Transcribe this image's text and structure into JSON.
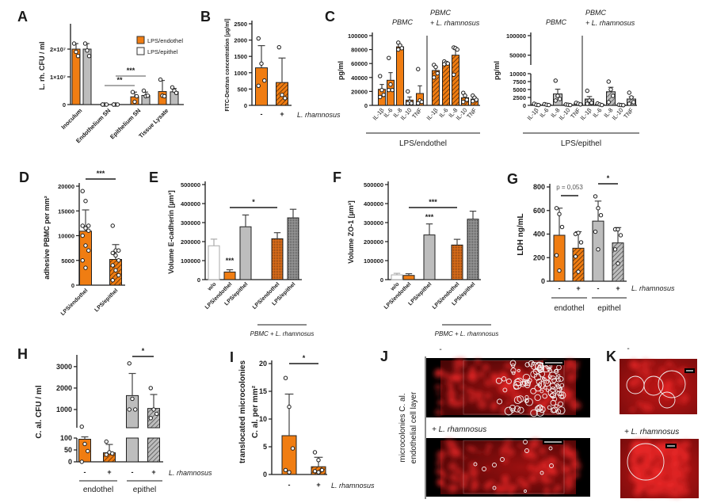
{
  "panel_labels": [
    "A",
    "B",
    "C",
    "D",
    "E",
    "F",
    "G",
    "H",
    "I",
    "J",
    "K"
  ],
  "colors": {
    "orange": "#F07D12",
    "grey": "#BDBDBD",
    "white": "#FFFFFF",
    "axis": "#1A1A1A",
    "fluorescence": "#D01818"
  },
  "chart_data": [
    {
      "panel": "A",
      "type": "bar",
      "ylabel": "L. rh. CFU / ml",
      "ylim": [
        0,
        28000000
      ],
      "y_segments": [
        [
          0,
          28000000
        ]
      ],
      "yticks": [
        0,
        10000000,
        20000000
      ],
      "ytick_labels": [
        "0",
        "1×10⁷",
        "2×10⁷"
      ],
      "categories": [
        "Inoculum",
        "Endothelium SN",
        "Epithelium SN",
        "Tissue Lysate"
      ],
      "legend": [
        {
          "label": "LPS/endothel",
          "fill_style": "orange"
        },
        {
          "label": "LPS/epithel",
          "fill_style": "white"
        }
      ],
      "legend_placement": "top-right",
      "bars": [
        {
          "category": "Inoculum",
          "series": "LPS/endothel",
          "value": 20000000,
          "error": 2000000,
          "points": [
            22000000,
            19000000,
            17500000
          ],
          "fill_style": "orange"
        },
        {
          "category": "Inoculum",
          "series": "LPS/epithel",
          "value": 20000000,
          "error": 2000000,
          "points": [
            22000000,
            19500000,
            17500000
          ],
          "fill_style": "grey"
        },
        {
          "category": "Endothelium SN",
          "series": "LPS/endothel",
          "value": 0,
          "error": 0,
          "points": [
            0,
            0,
            0,
            0
          ],
          "fill_style": "orange"
        },
        {
          "category": "Endothelium SN",
          "series": "LPS/epithel",
          "value": 0,
          "error": 0,
          "points": [
            0,
            0,
            0,
            0
          ],
          "fill_style": "grey"
        },
        {
          "category": "Epithelium SN",
          "series": "LPS/endothel",
          "value": 2800000,
          "error": 1700000,
          "points": [
            4500000,
            1000000,
            3000000
          ],
          "fill_style": "orange"
        },
        {
          "category": "Epithelium SN",
          "series": "LPS/epithel",
          "value": 3300000,
          "error": 1200000,
          "points": [
            5000000,
            3000000,
            3200000
          ],
          "fill_style": "grey"
        },
        {
          "category": "Tissue Lysate",
          "series": "LPS/endothel",
          "value": 4700000,
          "error": 4000000,
          "points": [
            9000000,
            3200000,
            3000000
          ],
          "fill_style": "orange"
        },
        {
          "category": "Tissue Lysate",
          "series": "LPS/epithel",
          "value": 4600000,
          "error": 1200000,
          "points": [
            6200000,
            5000000,
            4200000
          ],
          "fill_style": "grey"
        }
      ],
      "significance": [
        {
          "label": "**",
          "from": 2,
          "to": 4
        },
        {
          "label": "***",
          "from": 3,
          "to": 5
        }
      ]
    },
    {
      "panel": "B",
      "type": "bar",
      "ylabel": "FITC-Dextran concentration [µg/ml]",
      "ylim": [
        0,
        2500
      ],
      "y_segments": [
        [
          0,
          2500
        ]
      ],
      "yticks": [
        0,
        500,
        1000,
        1500,
        2000,
        2500
      ],
      "ytick_labels": [
        "0",
        "500",
        "1000",
        "1500",
        "2000",
        "2500"
      ],
      "xticks": [
        "-",
        "+"
      ],
      "xlabel": "L. rhamnosus",
      "bars": [
        {
          "value": 1150,
          "error": 680,
          "points": [
            2050,
            1280,
            760,
            600
          ],
          "fill_style": "orange"
        },
        {
          "value": 700,
          "error": 750,
          "points": [
            1780,
            320,
            220
          ],
          "fill_style": "orange-hatched"
        }
      ]
    },
    {
      "panel": "C",
      "type": "bar",
      "ylabel": "pg/ml",
      "ylim": [
        0,
        100000
      ],
      "y_segments": [
        [
          0,
          100000
        ]
      ],
      "yticks": [
        0,
        20000,
        40000,
        60000,
        80000,
        100000
      ],
      "ytick_labels": [
        "0",
        "20000",
        "40000",
        "60000",
        "80000",
        "100000"
      ],
      "headers": [
        {
          "lines": [
            "PBMC"
          ]
        },
        {
          "lines": [
            "PBMC",
            "+ L. rhamnosus"
          ]
        }
      ],
      "xticks": [
        "IL-1β",
        "IL-6",
        "IL-8",
        "IL-10",
        "TNF",
        "IL-1β",
        "IL-6",
        "IL-8",
        "IL-10",
        "TNF"
      ],
      "groups": [
        {
          "label": "LPS/endothel"
        }
      ],
      "bars": [
        {
          "value": 23000,
          "error": 7000,
          "points": [
            42000,
            22000,
            15000,
            12000
          ],
          "fill_style": "orange"
        },
        {
          "value": 36000,
          "error": 11000,
          "points": [
            68000,
            30000,
            22000,
            22000
          ],
          "fill_style": "orange"
        },
        {
          "value": 84000,
          "error": 3000,
          "points": [
            90000,
            86000,
            82000,
            80000
          ],
          "fill_style": "orange"
        },
        {
          "value": 7500,
          "error": 4500,
          "points": [
            20000,
            5000,
            3000,
            3000
          ],
          "fill_style": "orange"
        },
        {
          "value": 17000,
          "error": 11000,
          "points": [
            52000,
            7000,
            5000,
            3000
          ],
          "fill_style": "orange"
        },
        {
          "value": 50000,
          "error": 5000,
          "points": [
            58000,
            55000,
            46000,
            40000
          ],
          "fill_style": "orange-hatched"
        },
        {
          "value": 61000,
          "error": 2000,
          "points": [
            63000,
            61000,
            60000,
            59000
          ],
          "fill_style": "orange-hatched"
        },
        {
          "value": 72000,
          "error": 8000,
          "points": [
            83000,
            82000,
            80000,
            44000
          ],
          "fill_style": "orange-hatched"
        },
        {
          "value": 11000,
          "error": 3000,
          "points": [
            18000,
            14000,
            8000,
            5000
          ],
          "fill_style": "orange-hatched"
        },
        {
          "value": 9000,
          "error": 2000,
          "points": [
            14000,
            11000,
            8000,
            6000
          ],
          "fill_style": "orange-hatched"
        }
      ]
    },
    {
      "panel": "C",
      "type": "bar",
      "ylabel": "pg/ml",
      "ylim": [
        0,
        100000
      ],
      "y_segments": [
        [
          0,
          10000
        ],
        [
          25000,
          100000
        ]
      ],
      "yticks": [
        0,
        2500,
        5000,
        7500,
        10000,
        50000,
        100000
      ],
      "ytick_labels": [
        "0",
        "2500",
        "5000",
        "7500",
        "10000",
        "50000",
        "100000"
      ],
      "headers": [
        {
          "lines": [
            "PBMC"
          ]
        },
        {
          "lines": [
            "PBMC",
            "+ L. rhamnosus"
          ]
        }
      ],
      "xticks": [
        "IL-1β",
        "IL-6",
        "IL-8",
        "IL-10",
        "TNF",
        "IL-1β",
        "IL-6",
        "IL-8",
        "IL-10",
        "TNF"
      ],
      "groups": [
        {
          "label": "LPS/epithel"
        }
      ],
      "bars": [
        {
          "value": 250,
          "error": 150,
          "points": [
            500,
            200,
            100
          ],
          "fill_style": "grey"
        },
        {
          "value": 200,
          "error": 100,
          "points": [
            400,
            200,
            100
          ],
          "fill_style": "grey"
        },
        {
          "value": 3600,
          "error": 1500,
          "points": [
            7800,
            3000,
            2000,
            1500
          ],
          "fill_style": "grey"
        },
        {
          "value": 250,
          "error": 100,
          "points": [
            300,
            200,
            100
          ],
          "fill_style": "grey"
        },
        {
          "value": 500,
          "error": 200,
          "points": [
            800,
            500,
            300
          ],
          "fill_style": "grey"
        },
        {
          "value": 2000,
          "error": 800,
          "points": [
            4600,
            1500,
            800,
            500
          ],
          "fill_style": "grey-hatched"
        },
        {
          "value": 300,
          "error": 200,
          "points": [
            600,
            300,
            100
          ],
          "fill_style": "grey-hatched"
        },
        {
          "value": 4300,
          "error": 1400,
          "points": [
            7500,
            5000,
            3000,
            1000
          ],
          "fill_style": "grey-hatched"
        },
        {
          "value": 100,
          "error": 50,
          "points": [
            200,
            100,
            50
          ],
          "fill_style": "grey-hatched"
        },
        {
          "value": 2000,
          "error": 700,
          "points": [
            4000,
            2500,
            1000,
            500
          ],
          "fill_style": "grey-hatched"
        }
      ]
    },
    {
      "panel": "D",
      "type": "bar",
      "ylabel": "adhesive PBMC per mm²",
      "ylim": [
        0,
        20000
      ],
      "y_segments": [
        [
          0,
          20000
        ]
      ],
      "yticks": [
        0,
        5000,
        10000,
        15000,
        20000
      ],
      "ytick_labels": [
        "0",
        "5000",
        "10000",
        "15000",
        "20000"
      ],
      "xticks": [
        "LPS/endothel",
        "LPS/epithel"
      ],
      "bars": [
        {
          "value": 10900,
          "error": 4300,
          "points": [
            19000,
            17000,
            12000,
            12000,
            11500,
            11000,
            10000,
            8000,
            7000,
            5000,
            3500
          ],
          "fill_style": "orange"
        },
        {
          "value": 5200,
          "error": 3000,
          "points": [
            12000,
            7000,
            7000,
            6500,
            6000,
            5000,
            4000,
            3000,
            2000,
            1000
          ],
          "fill_style": "orange-hatched"
        }
      ],
      "significance": [
        {
          "label": "***",
          "from": 0,
          "to": 1
        }
      ]
    },
    {
      "panel": "E",
      "type": "bar",
      "ylabel": "Volume E-cadherin [µm³]",
      "ylim": [
        0,
        500000
      ],
      "y_segments": [
        [
          0,
          500000
        ]
      ],
      "yticks": [
        0,
        100000,
        200000,
        300000,
        400000,
        500000
      ],
      "ytick_labels": [
        "0",
        "100000",
        "200000",
        "300000",
        "400000",
        "500000"
      ],
      "xticks": [
        "w/o",
        "LPS/endothel",
        "LPS/epithel",
        "LPS/endothel",
        "LPS/epithel"
      ],
      "groups": [
        {
          "label": "PBMC + L. rhamnosus"
        }
      ],
      "bars": [
        {
          "value": 178000,
          "error": 35000,
          "points": [],
          "fill_style": "white"
        },
        {
          "value": 40000,
          "error": 12000,
          "points": [],
          "fill_style": "orange"
        },
        {
          "value": 278000,
          "error": 62000,
          "points": [],
          "fill_style": "grey"
        },
        {
          "value": 215000,
          "error": 32000,
          "points": [],
          "fill_style": "orange-dotted"
        },
        {
          "value": 325000,
          "error": 45000,
          "points": [],
          "fill_style": "grey-dotted"
        }
      ],
      "significance": [
        {
          "label": "*",
          "from": 1,
          "to": 3
        }
      ],
      "annotations": [
        {
          "label": "***",
          "bar": 1
        }
      ]
    },
    {
      "panel": "F",
      "type": "bar",
      "ylabel": "Volume ZO-1 [µm³]",
      "ylim": [
        0,
        500000
      ],
      "y_segments": [
        [
          0,
          500000
        ]
      ],
      "yticks": [
        0,
        100000,
        200000,
        300000,
        400000,
        500000
      ],
      "ytick_labels": [
        "0",
        "100000",
        "200000",
        "300000",
        "400000",
        "500000"
      ],
      "xticks": [
        "w/o",
        "LPS/endothel",
        "LPS/epithel",
        "LPS/endothel",
        "LPS/epithel"
      ],
      "groups": [
        {
          "label": "PBMC + L. rhamnosus"
        }
      ],
      "bars": [
        {
          "value": 25000,
          "error": 8000,
          "points": [],
          "fill_style": "white"
        },
        {
          "value": 22000,
          "error": 9000,
          "points": [],
          "fill_style": "orange"
        },
        {
          "value": 235000,
          "error": 58000,
          "points": [],
          "fill_style": "grey"
        },
        {
          "value": 182000,
          "error": 30000,
          "points": [],
          "fill_style": "orange-dotted"
        },
        {
          "value": 318000,
          "error": 42000,
          "points": [],
          "fill_style": "grey-dotted"
        }
      ],
      "significance": [
        {
          "label": "***",
          "from": 1,
          "to": 3
        }
      ],
      "annotations": [
        {
          "label": "***",
          "bar": 2
        }
      ]
    },
    {
      "panel": "G",
      "type": "bar",
      "ylabel": "LDH ng/mL",
      "ylim": [
        0,
        800
      ],
      "y_segments": [
        [
          0,
          800
        ]
      ],
      "yticks": [
        0,
        200,
        400,
        600,
        800
      ],
      "ytick_labels": [
        "0",
        "200",
        "400",
        "600",
        "800"
      ],
      "xticks": [
        "-",
        "+",
        "-",
        "+"
      ],
      "xlabel": "L. rhamnosus",
      "groups": [
        {
          "label": "endothel"
        },
        {
          "label": "epithel"
        }
      ],
      "bars": [
        {
          "value": 390,
          "error": 230,
          "points": [
            620,
            570,
            460,
            220,
            90
          ],
          "fill_style": "orange"
        },
        {
          "value": 280,
          "error": 140,
          "points": [
            400,
            410,
            330,
            210,
            80
          ],
          "fill_style": "orange-hatched"
        },
        {
          "value": 510,
          "error": 170,
          "points": [
            720,
            620,
            560,
            420,
            270
          ],
          "fill_style": "grey"
        },
        {
          "value": 325,
          "error": 130,
          "points": [
            440,
            440,
            390,
            270,
            150
          ],
          "fill_style": "grey-hatched"
        }
      ],
      "significance": [
        {
          "label": "p = 0,053",
          "from": 0,
          "to": 1
        },
        {
          "label": "*",
          "from": 2,
          "to": 3
        }
      ]
    },
    {
      "panel": "H",
      "type": "bar",
      "ylabel": "C. al. CFU / ml",
      "ylim": [
        0,
        3400
      ],
      "y_segments": [
        [
          0,
          100
        ],
        [
          150,
          3400
        ]
      ],
      "yticks": [
        0,
        50,
        100,
        1000,
        2000,
        3000
      ],
      "ytick_labels": [
        "0",
        "50",
        "100",
        "1000",
        "2000",
        "3000"
      ],
      "xticks": [
        "-",
        "+",
        "-",
        "+"
      ],
      "xlabel": "L. rhamnosus",
      "groups": [
        {
          "label": "endothel"
        },
        {
          "label": "epithel"
        }
      ],
      "bars": [
        {
          "value": 95,
          "error": 40,
          "points": [
            200,
            75,
            45,
            0
          ],
          "fill_style": "orange"
        },
        {
          "value": 38,
          "error": 35,
          "points": [
            85,
            40,
            35,
            30
          ],
          "fill_style": "orange-hatched"
        },
        {
          "value": 1650,
          "error": 1030,
          "points": [
            3150,
            1500,
            1000,
            1000
          ],
          "fill_style": "grey"
        },
        {
          "value": 1050,
          "error": 650,
          "points": [
            2000,
            1000,
            800,
            600
          ],
          "fill_style": "grey-hatched"
        }
      ],
      "significance": [
        {
          "label": "*",
          "from": 2,
          "to": 3
        }
      ]
    },
    {
      "panel": "I",
      "type": "bar",
      "ylabel": [
        "translocated microcolonies",
        "C. al. per mm²"
      ],
      "ylim": [
        0,
        20
      ],
      "y_segments": [
        [
          0,
          20
        ]
      ],
      "yticks": [
        0,
        5,
        10,
        15,
        20
      ],
      "ytick_labels": [
        "0",
        "5",
        "10",
        "15",
        "20"
      ],
      "xticks": [
        "-",
        "+"
      ],
      "xlabel": "L. rhamnosus",
      "bars": [
        {
          "value": 7,
          "error": 7.5,
          "points": [
            17.4,
            12.2,
            4.7,
            0.8,
            0.4
          ],
          "fill_style": "orange"
        },
        {
          "value": 1.4,
          "error": 1.7,
          "points": [
            4,
            2.6,
            0.8,
            0.6,
            0.4
          ],
          "fill_style": "orange-hatched"
        }
      ],
      "significance": [
        {
          "label": "*",
          "from": 0,
          "to": 1
        }
      ]
    }
  ],
  "panel_j": {
    "ylabel": [
      "microcolonies C. al.",
      "endothelial cell layer"
    ],
    "top_label": "-",
    "bottom_label": "+ L. rhamnosus"
  },
  "panel_k": {
    "top_label": "-",
    "bottom_label": "+ L. rhamnosus"
  }
}
